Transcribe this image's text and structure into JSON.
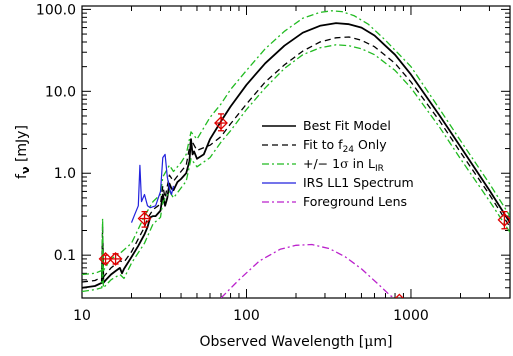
{
  "chart_data": {
    "type": "line",
    "x_scale": "log",
    "y_scale": "log",
    "xlim": [
      10,
      4000
    ],
    "ylim": [
      0.03,
      110
    ],
    "xlabel_parts": [
      "Observed Wavelength [",
      "μ",
      "m]"
    ],
    "ylabel_parts": [
      "f",
      "ν",
      " [mJy]"
    ],
    "x_ticks": [
      {
        "value": 10,
        "label": "10"
      },
      {
        "value": 100,
        "label": "100"
      },
      {
        "value": 1000,
        "label": "1000"
      }
    ],
    "y_ticks": [
      {
        "value": 0.1,
        "label": "0.1"
      },
      {
        "value": 1.0,
        "label": "1.0"
      },
      {
        "value": 10.0,
        "label": "10.0"
      },
      {
        "value": 100.0,
        "label": "100.0"
      }
    ],
    "legend": {
      "placement": "right-center",
      "entries": [
        {
          "series": "best",
          "parts": [
            "Best Fit Model"
          ]
        },
        {
          "series": "f24",
          "parts": [
            "Fit to f",
            "24",
            " Only"
          ]
        },
        {
          "series": "sigma",
          "parts": [
            "+/− 1",
            "σ",
            " in L",
            "IR"
          ]
        },
        {
          "series": "irs",
          "parts": [
            "IRS LL1 Spectrum"
          ]
        },
        {
          "series": "lens",
          "parts": [
            "Foreground Lens"
          ]
        }
      ]
    },
    "series": [
      {
        "id": "best",
        "color": "#000000",
        "dash": "none",
        "width": 1.8,
        "points": [
          [
            10,
            0.04
          ],
          [
            11,
            0.041
          ],
          [
            12,
            0.042
          ],
          [
            13.2,
            0.046
          ],
          [
            13.35,
            0.15
          ],
          [
            13.5,
            0.046
          ],
          [
            14,
            0.05
          ],
          [
            15,
            0.058
          ],
          [
            16,
            0.064
          ],
          [
            17,
            0.07
          ],
          [
            17.5,
            0.06
          ],
          [
            18,
            0.068
          ],
          [
            20,
            0.095
          ],
          [
            22,
            0.13
          ],
          [
            24,
            0.18
          ],
          [
            25,
            0.22
          ],
          [
            26,
            0.29
          ],
          [
            27,
            0.3
          ],
          [
            28,
            0.3
          ],
          [
            30,
            0.35
          ],
          [
            31,
            0.55
          ],
          [
            32,
            0.4
          ],
          [
            33,
            0.5
          ],
          [
            34,
            0.75
          ],
          [
            35,
            0.65
          ],
          [
            36,
            0.62
          ],
          [
            38,
            0.78
          ],
          [
            40,
            0.85
          ],
          [
            43,
            1.0
          ],
          [
            45,
            1.4
          ],
          [
            46,
            2.6
          ],
          [
            47,
            1.7
          ],
          [
            48,
            1.85
          ],
          [
            50,
            1.5
          ],
          [
            55,
            1.7
          ],
          [
            60,
            2.6
          ],
          [
            70,
            4.3
          ],
          [
            80,
            6.5
          ],
          [
            100,
            12
          ],
          [
            130,
            22
          ],
          [
            170,
            36
          ],
          [
            220,
            52
          ],
          [
            280,
            63
          ],
          [
            350,
            68
          ],
          [
            420,
            66
          ],
          [
            500,
            60
          ],
          [
            600,
            48
          ],
          [
            800,
            28
          ],
          [
            1000,
            16
          ],
          [
            1500,
            5
          ],
          [
            2000,
            2.1
          ],
          [
            3000,
            0.62
          ],
          [
            4000,
            0.25
          ]
        ]
      },
      {
        "id": "f24",
        "color": "#000000",
        "dash": "6,4",
        "width": 1.3,
        "points": [
          [
            10,
            0.047
          ],
          [
            12,
            0.049
          ],
          [
            13.2,
            0.054
          ],
          [
            13.35,
            0.22
          ],
          [
            13.5,
            0.054
          ],
          [
            15,
            0.07
          ],
          [
            17,
            0.085
          ],
          [
            18,
            0.082
          ],
          [
            20,
            0.11
          ],
          [
            24,
            0.22
          ],
          [
            25,
            0.28
          ],
          [
            27,
            0.36
          ],
          [
            30,
            0.42
          ],
          [
            31,
            0.7
          ],
          [
            32,
            0.5
          ],
          [
            34,
            0.95
          ],
          [
            36,
            0.8
          ],
          [
            40,
            1.05
          ],
          [
            43,
            1.25
          ],
          [
            46,
            2.6
          ],
          [
            48,
            2.2
          ],
          [
            50,
            1.9
          ],
          [
            60,
            2.2
          ],
          [
            70,
            2.8
          ],
          [
            80,
            4.0
          ],
          [
            100,
            7
          ],
          [
            130,
            13
          ],
          [
            170,
            21
          ],
          [
            220,
            31
          ],
          [
            280,
            40
          ],
          [
            350,
            45
          ],
          [
            420,
            46
          ],
          [
            500,
            42
          ],
          [
            600,
            35
          ],
          [
            800,
            22
          ],
          [
            1000,
            13
          ],
          [
            1500,
            4.3
          ],
          [
            2000,
            1.8
          ],
          [
            3000,
            0.55
          ],
          [
            4000,
            0.22
          ]
        ]
      },
      {
        "id": "sigma_hi",
        "color": "#22bb22",
        "dash": "7,3,2,3",
        "width": 1.3,
        "points": [
          [
            10,
            0.058
          ],
          [
            12,
            0.06
          ],
          [
            13.2,
            0.065
          ],
          [
            13.35,
            0.28
          ],
          [
            13.5,
            0.065
          ],
          [
            15,
            0.09
          ],
          [
            17,
            0.105
          ],
          [
            20,
            0.14
          ],
          [
            24,
            0.3
          ],
          [
            27,
            0.45
          ],
          [
            30,
            0.55
          ],
          [
            31,
            0.9
          ],
          [
            34,
            1.25
          ],
          [
            36,
            1.05
          ],
          [
            40,
            1.35
          ],
          [
            43,
            1.7
          ],
          [
            46,
            3.2
          ],
          [
            50,
            2.6
          ],
          [
            60,
            4.8
          ],
          [
            70,
            7
          ],
          [
            80,
            10.5
          ],
          [
            100,
            18
          ],
          [
            130,
            33
          ],
          [
            170,
            54
          ],
          [
            220,
            78
          ],
          [
            280,
            92
          ],
          [
            330,
            96
          ],
          [
            380,
            94
          ],
          [
            450,
            84
          ],
          [
            550,
            66
          ],
          [
            700,
            42
          ],
          [
            1000,
            20
          ],
          [
            1500,
            6
          ],
          [
            2000,
            2.5
          ],
          [
            3000,
            0.75
          ],
          [
            4000,
            0.3
          ]
        ]
      },
      {
        "id": "sigma_lo",
        "color": "#22bb22",
        "dash": "7,3,2,3",
        "width": 1.3,
        "points": [
          [
            10,
            0.036
          ],
          [
            12,
            0.038
          ],
          [
            13.2,
            0.04
          ],
          [
            13.35,
            0.12
          ],
          [
            13.5,
            0.04
          ],
          [
            15,
            0.05
          ],
          [
            17,
            0.058
          ],
          [
            18,
            0.052
          ],
          [
            20,
            0.08
          ],
          [
            24,
            0.14
          ],
          [
            27,
            0.24
          ],
          [
            30,
            0.29
          ],
          [
            31,
            0.44
          ],
          [
            34,
            0.6
          ],
          [
            36,
            0.5
          ],
          [
            40,
            0.66
          ],
          [
            43,
            0.8
          ],
          [
            46,
            1.5
          ],
          [
            50,
            1.2
          ],
          [
            60,
            1.55
          ],
          [
            70,
            2.4
          ],
          [
            80,
            3.3
          ],
          [
            100,
            6
          ],
          [
            130,
            11
          ],
          [
            170,
            19
          ],
          [
            220,
            28
          ],
          [
            280,
            34
          ],
          [
            350,
            37
          ],
          [
            420,
            36
          ],
          [
            500,
            33
          ],
          [
            600,
            28
          ],
          [
            800,
            18
          ],
          [
            1000,
            11
          ],
          [
            1500,
            3.6
          ],
          [
            2000,
            1.5
          ],
          [
            3000,
            0.46
          ],
          [
            4000,
            0.19
          ]
        ]
      },
      {
        "id": "irs",
        "color": "#2222dd",
        "dash": "none",
        "width": 1.2,
        "points": [
          [
            20,
            0.25
          ],
          [
            21,
            0.32
          ],
          [
            22,
            0.4
          ],
          [
            22.5,
            1.25
          ],
          [
            23,
            0.45
          ],
          [
            24,
            0.55
          ],
          [
            25,
            0.4
          ],
          [
            26,
            0.38
          ],
          [
            28,
            0.4
          ],
          [
            30,
            0.6
          ],
          [
            31,
            1.55
          ],
          [
            32,
            1.7
          ],
          [
            33,
            0.9
          ],
          [
            34,
            0.65
          ],
          [
            35,
            0.55
          ],
          [
            36,
            0.7
          ]
        ]
      },
      {
        "id": "lens",
        "color": "#bb22cc",
        "dash": "7,3,2,3",
        "width": 1.3,
        "points": [
          [
            70,
            0.03
          ],
          [
            90,
            0.05
          ],
          [
            120,
            0.085
          ],
          [
            160,
            0.118
          ],
          [
            200,
            0.132
          ],
          [
            250,
            0.135
          ],
          [
            320,
            0.12
          ],
          [
            400,
            0.095
          ],
          [
            500,
            0.068
          ],
          [
            650,
            0.042
          ],
          [
            750,
            0.032
          ],
          [
            800,
            0.03
          ]
        ]
      }
    ],
    "points": [
      {
        "x": 13.9,
        "y": 0.09,
        "x_err": [
          13.0,
          14.8
        ],
        "y_err": [
          0.08,
          0.1
        ]
      },
      {
        "x": 16.0,
        "y": 0.09,
        "x_err": [
          14.8,
          17.2
        ],
        "y_err": [
          0.078,
          0.104
        ]
      },
      {
        "x": 24.0,
        "y": 0.28,
        "x_err": [
          22.5,
          25.5
        ],
        "y_err": [
          0.22,
          0.34
        ]
      },
      {
        "x": 70.0,
        "y": 4.1,
        "x_err": [
          64,
          76
        ],
        "y_err": [
          3.3,
          5.3
        ]
      },
      {
        "x": 850,
        "y": 0.028,
        "x_err": null,
        "y_err": null
      },
      {
        "x": 3700,
        "y": 0.27,
        "x_err": null,
        "y_err": [
          0.21,
          0.34
        ]
      }
    ],
    "marker_color": "#dd0000",
    "legend_sample_colors": {
      "best": "#000000",
      "f24": "#000000",
      "sigma": "#22bb22",
      "irs": "#2222dd",
      "lens": "#bb22cc"
    }
  }
}
